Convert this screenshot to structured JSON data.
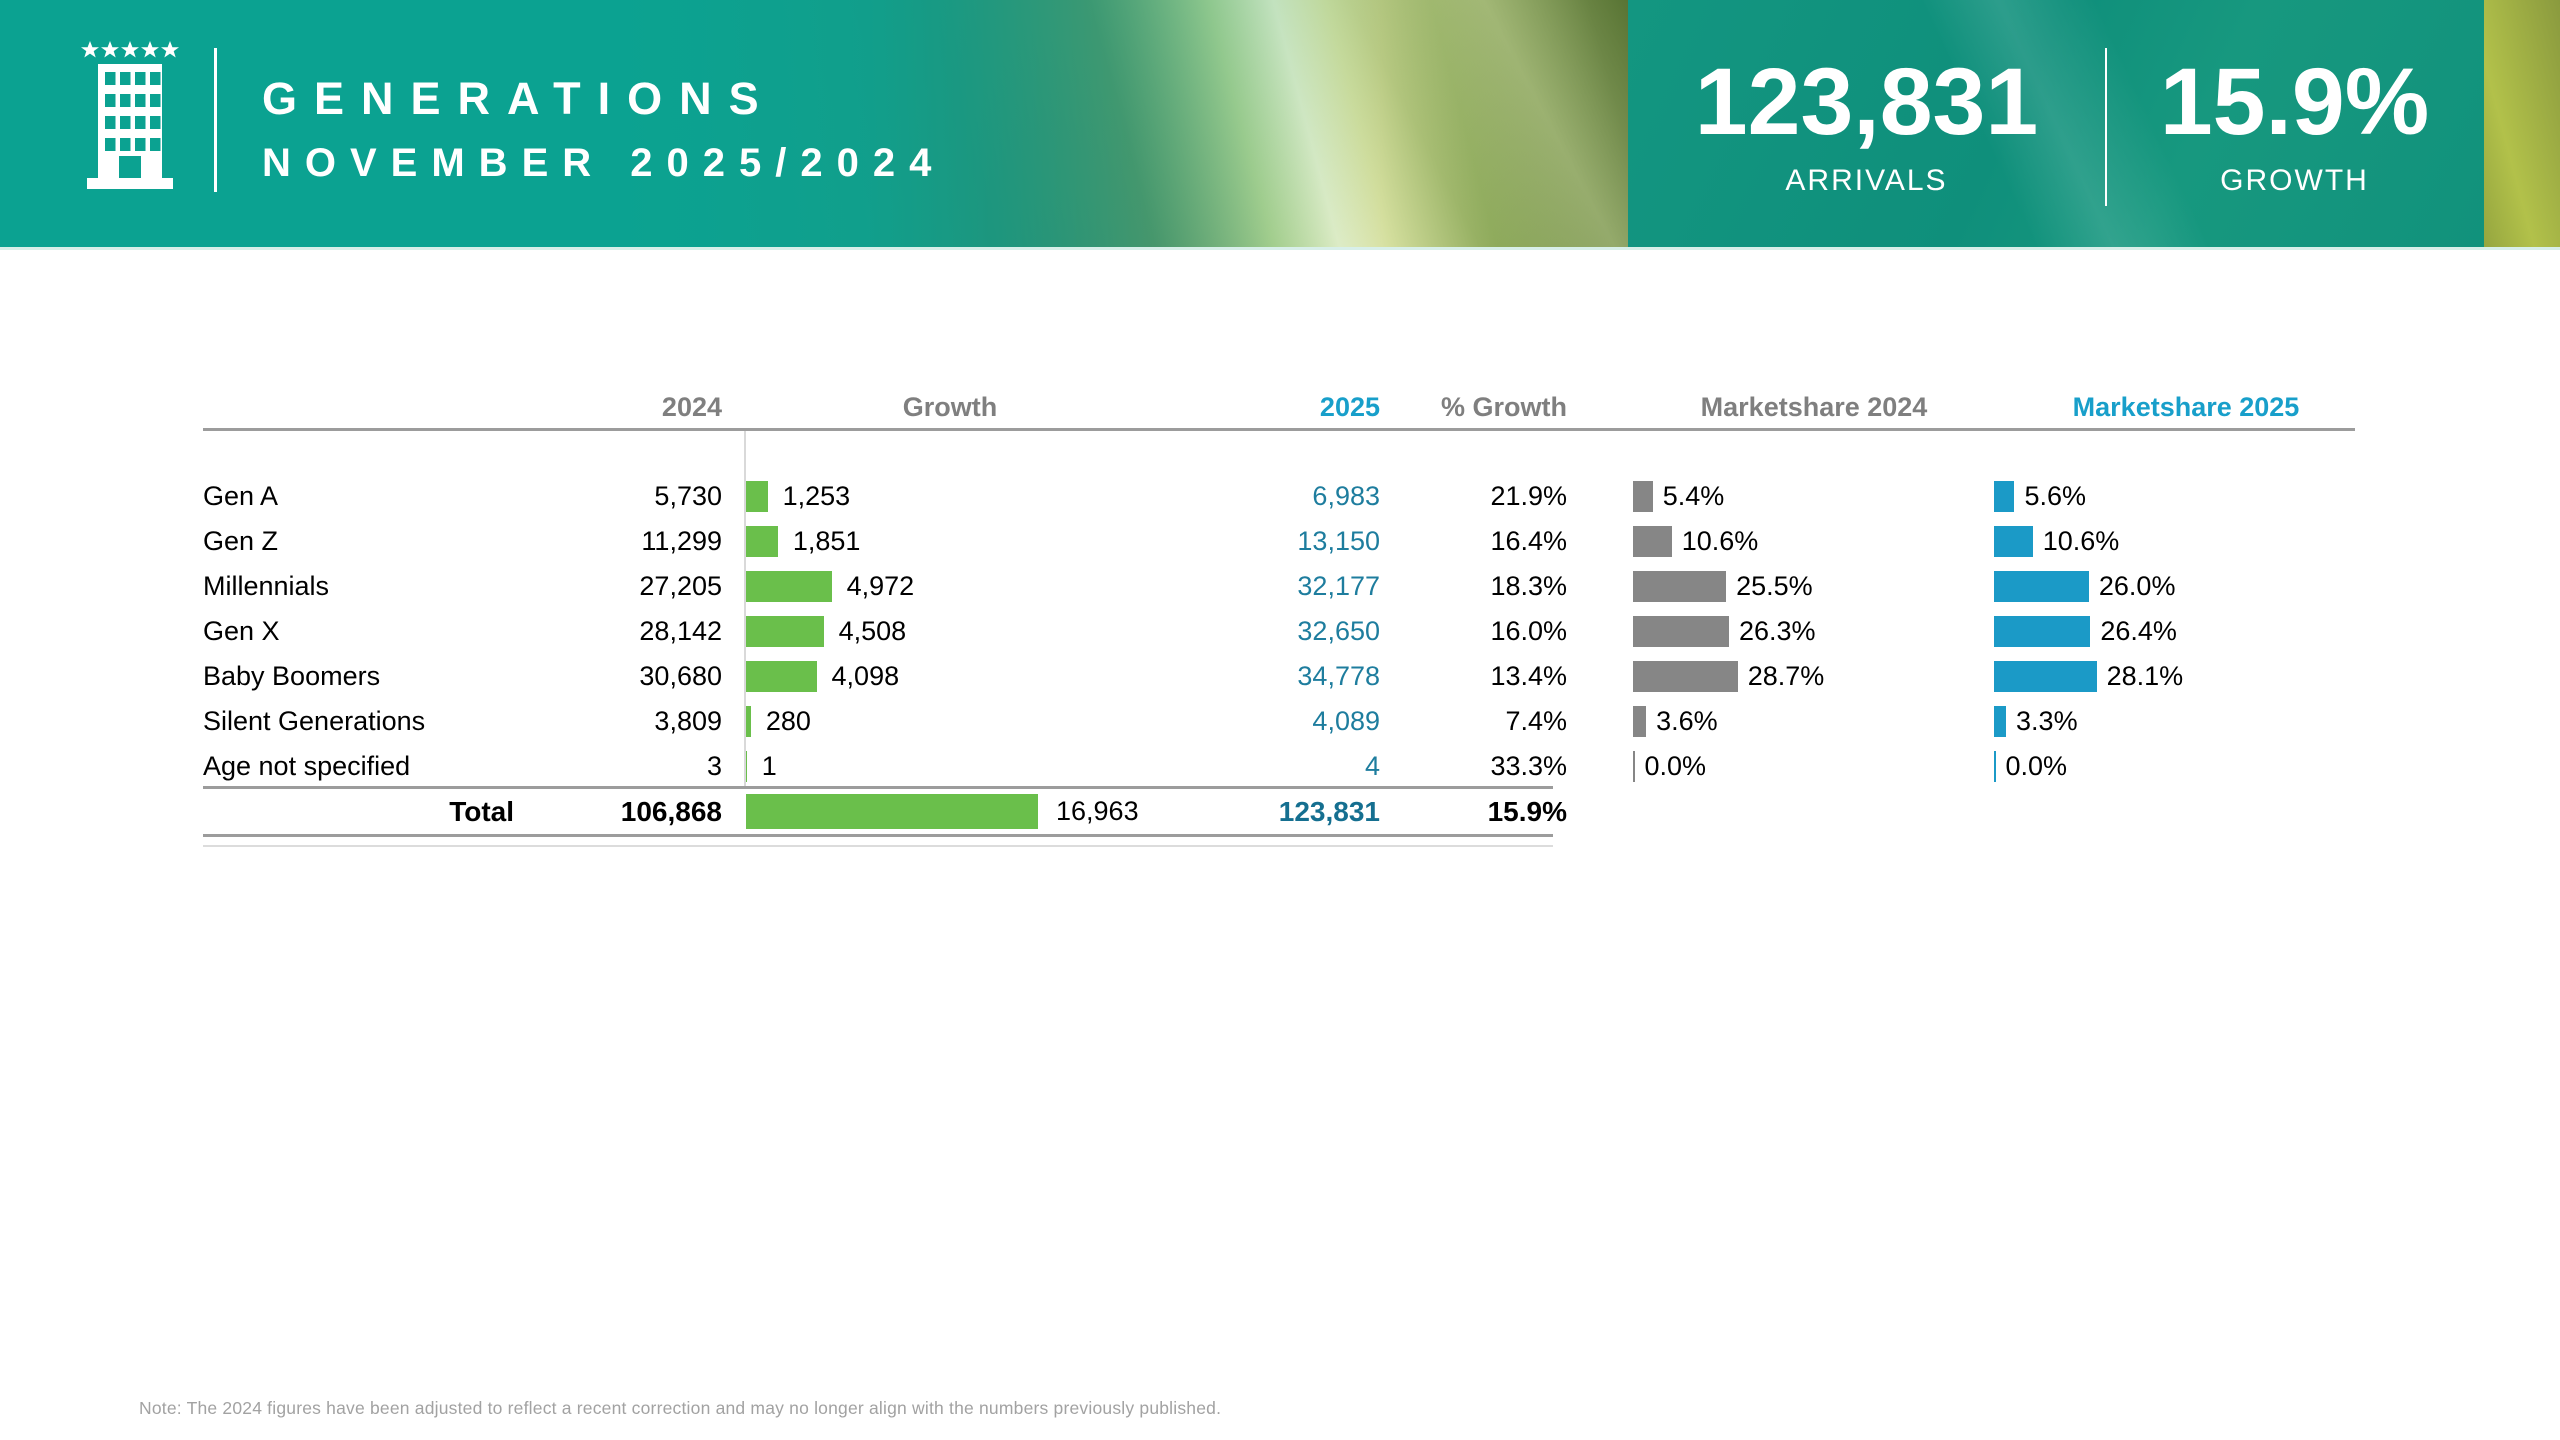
{
  "header": {
    "title_line1": "GENERATIONS",
    "title_line2": "NOVEMBER 2025/2024",
    "logo_icon": "hotel-building-five-stars-icon",
    "stats": [
      {
        "value": "123,831",
        "label": "ARRIVALS"
      },
      {
        "value": "15.9%",
        "label": "GROWTH"
      }
    ]
  },
  "table": {
    "columns": [
      "2024",
      "Growth",
      "2025",
      "% Growth",
      "Marketshare 2024",
      "Marketshare 2025"
    ],
    "rows": [
      {
        "label": "Gen A",
        "y2024": "5,730",
        "growth": "1,253",
        "growth_n": 1253,
        "y2025": "6,983",
        "pct_growth": "21.9%",
        "ms2024": "5.4%",
        "ms2024_n": 5.4,
        "ms2025": "5.6%",
        "ms2025_n": 5.6
      },
      {
        "label": "Gen Z",
        "y2024": "11,299",
        "growth": "1,851",
        "growth_n": 1851,
        "y2025": "13,150",
        "pct_growth": "16.4%",
        "ms2024": "10.6%",
        "ms2024_n": 10.6,
        "ms2025": "10.6%",
        "ms2025_n": 10.6
      },
      {
        "label": "Millennials",
        "y2024": "27,205",
        "growth": "4,972",
        "growth_n": 4972,
        "y2025": "32,177",
        "pct_growth": "18.3%",
        "ms2024": "25.5%",
        "ms2024_n": 25.5,
        "ms2025": "26.0%",
        "ms2025_n": 26.0
      },
      {
        "label": "Gen X",
        "y2024": "28,142",
        "growth": "4,508",
        "growth_n": 4508,
        "y2025": "32,650",
        "pct_growth": "16.0%",
        "ms2024": "26.3%",
        "ms2024_n": 26.3,
        "ms2025": "26.4%",
        "ms2025_n": 26.4
      },
      {
        "label": "Baby Boomers",
        "y2024": "30,680",
        "growth": "4,098",
        "growth_n": 4098,
        "y2025": "34,778",
        "pct_growth": "13.4%",
        "ms2024": "28.7%",
        "ms2024_n": 28.7,
        "ms2025": "28.1%",
        "ms2025_n": 28.1
      },
      {
        "label": "Silent Generations",
        "y2024": "3,809",
        "growth": "280",
        "growth_n": 280,
        "y2025": "4,089",
        "pct_growth": "7.4%",
        "ms2024": "3.6%",
        "ms2024_n": 3.6,
        "ms2025": "3.3%",
        "ms2025_n": 3.3
      },
      {
        "label": "Age not specified",
        "y2024": "3",
        "growth": "1",
        "growth_n": 1,
        "y2025": "4",
        "pct_growth": "33.3%",
        "ms2024": "0.0%",
        "ms2024_n": 0.0,
        "ms2025": "0.0%",
        "ms2025_n": 0.0
      }
    ],
    "total": {
      "label": "Total",
      "y2024": "106,868",
      "growth": "16,963",
      "growth_n": 16963,
      "y2025": "123,831",
      "pct_growth": "15.9%"
    }
  },
  "note": "Note: The 2024 figures have been adjusted to reflect a recent correction and may no longer align with the numbers previously published.",
  "colors": {
    "header_teal": "#0ba291",
    "panel_teal": "#12947f",
    "growth_bar_green": "#6abf4b",
    "marketshare_2024_gray": "#868686",
    "marketshare_2025_blue": "#1b9ac7",
    "values_2025_blue": "#1e7d9e",
    "total_2025_blue": "#156f90",
    "column_header_gray": "#7f7f7f",
    "column_header_blue": "#189fca"
  },
  "chart_data": {
    "type": "table",
    "title": "Generations November 2025/2024",
    "categories": [
      "Gen A",
      "Gen Z",
      "Millennials",
      "Gen X",
      "Baby Boomers",
      "Silent Generations",
      "Age not specified"
    ],
    "series": [
      {
        "name": "2024",
        "values": [
          5730,
          11299,
          27205,
          28142,
          30680,
          3809,
          3
        ]
      },
      {
        "name": "Growth",
        "values": [
          1253,
          1851,
          4972,
          4508,
          4098,
          280,
          1
        ]
      },
      {
        "name": "2025",
        "values": [
          6983,
          13150,
          32177,
          32650,
          34778,
          4089,
          4
        ]
      },
      {
        "name": "% Growth",
        "values": [
          21.9,
          16.4,
          18.3,
          16.0,
          13.4,
          7.4,
          33.3
        ]
      },
      {
        "name": "Marketshare 2024 (%)",
        "values": [
          5.4,
          10.6,
          25.5,
          26.3,
          28.7,
          3.6,
          0.0
        ]
      },
      {
        "name": "Marketshare 2025 (%)",
        "values": [
          5.6,
          10.6,
          26.0,
          26.4,
          28.1,
          3.3,
          0.0
        ]
      }
    ],
    "total": {
      "2024": 106868,
      "Growth": 16963,
      "2025": 123831,
      "% Growth": 15.9
    },
    "legend_position": "none",
    "grid": false
  }
}
